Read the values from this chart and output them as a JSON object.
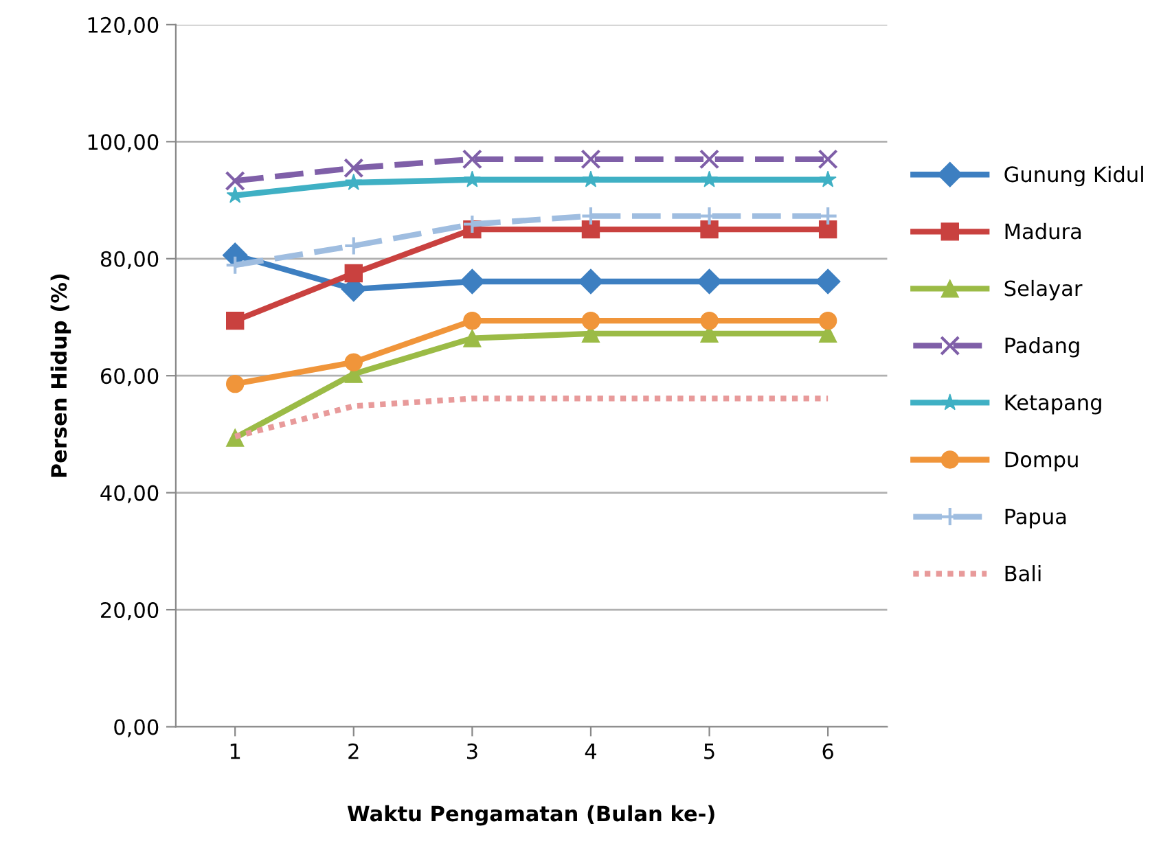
{
  "chart_data": {
    "type": "line",
    "xlabel": "Waktu Pengamatan (Bulan ke-)",
    "ylabel": "Persen Hidup (%)",
    "categories": [
      "1",
      "2",
      "3",
      "4",
      "5",
      "6"
    ],
    "ylim": [
      0,
      120
    ],
    "yticks": [
      {
        "value": 0,
        "label": "0,00"
      },
      {
        "value": 20,
        "label": "20,00"
      },
      {
        "value": 40,
        "label": "40,00"
      },
      {
        "value": 60,
        "label": "60,00"
      },
      {
        "value": 80,
        "label": "80,00"
      },
      {
        "value": 100,
        "label": "100,00"
      },
      {
        "value": 120,
        "label": "120,00"
      }
    ],
    "grid": "y",
    "legend": "right",
    "series": [
      {
        "name": "Gunung Kidul",
        "color": "#3d7fc1",
        "marker": "diamond",
        "line_style": "solid",
        "values": [
          80.6,
          74.8,
          76.1,
          76.1,
          76.1,
          76.1
        ]
      },
      {
        "name": "Madura",
        "color": "#c9413f",
        "marker": "square",
        "line_style": "solid",
        "values": [
          69.4,
          77.5,
          85.0,
          85.0,
          85.0,
          85.0
        ]
      },
      {
        "name": "Selayar",
        "color": "#9bbb46",
        "marker": "triangle",
        "line_style": "solid",
        "values": [
          49.4,
          60.3,
          66.4,
          67.2,
          67.2,
          67.2
        ]
      },
      {
        "name": "Padang",
        "color": "#7f5fa8",
        "marker": "cross",
        "line_style": "dashed",
        "values": [
          93.3,
          95.5,
          97.0,
          97.0,
          97.0,
          97.0
        ]
      },
      {
        "name": "Ketapang",
        "color": "#3fb0c4",
        "marker": "star",
        "line_style": "solid",
        "values": [
          90.8,
          93.0,
          93.5,
          93.5,
          93.5,
          93.5
        ]
      },
      {
        "name": "Dompu",
        "color": "#f0953a",
        "marker": "circle",
        "line_style": "solid",
        "values": [
          58.6,
          62.3,
          69.4,
          69.4,
          69.4,
          69.4
        ]
      },
      {
        "name": "Papua",
        "color": "#9fbde0",
        "marker": "plus",
        "line_style": "dashed",
        "values": [
          78.9,
          82.2,
          85.9,
          87.3,
          87.3,
          87.3
        ]
      },
      {
        "name": "Bali",
        "color": "#e89a9a",
        "marker": "none",
        "line_style": "dotted",
        "values": [
          49.6,
          54.8,
          56.1,
          56.1,
          56.1,
          56.1
        ]
      }
    ]
  }
}
